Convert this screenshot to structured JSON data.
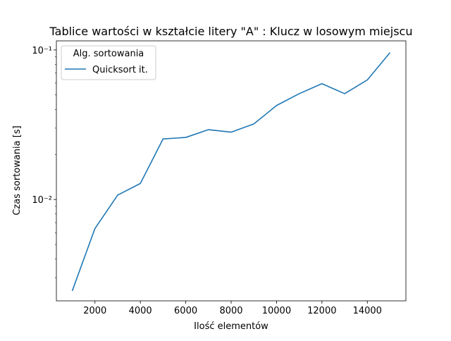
{
  "chart_data": {
    "type": "line",
    "title": "Tablice wartości w kształcie litery \"A\" : Klucz w losowym miejscu",
    "xlabel": "Ilość elementów",
    "ylabel": "Czas sortowania [s]",
    "xlim": [
      300,
      15700
    ],
    "ylim": [
      0.0021,
      0.115
    ],
    "yscale": "log",
    "grid": false,
    "x_ticks": [
      2000,
      4000,
      6000,
      8000,
      10000,
      12000,
      14000
    ],
    "x_tick_labels": [
      "2000",
      "4000",
      "6000",
      "8000",
      "10000",
      "12000",
      "14000"
    ],
    "y_major_ticks": [
      0.01,
      0.1
    ],
    "y_tick_labels": [
      "10⁻²",
      "10⁻¹"
    ],
    "legend": {
      "title": "Alg. sortowania",
      "location": "upper-left"
    },
    "x": [
      1000,
      2000,
      3000,
      4000,
      5000,
      6000,
      7000,
      8000,
      9000,
      10000,
      11000,
      12000,
      13000,
      14000,
      15000
    ],
    "series": [
      {
        "name": "Quicksort it.",
        "color": "#1f77b4",
        "values": [
          0.00245,
          0.0064,
          0.0107,
          0.0128,
          0.0254,
          0.026,
          0.0293,
          0.0282,
          0.032,
          0.0425,
          0.051,
          0.0595,
          0.051,
          0.063,
          0.096
        ]
      }
    ]
  }
}
